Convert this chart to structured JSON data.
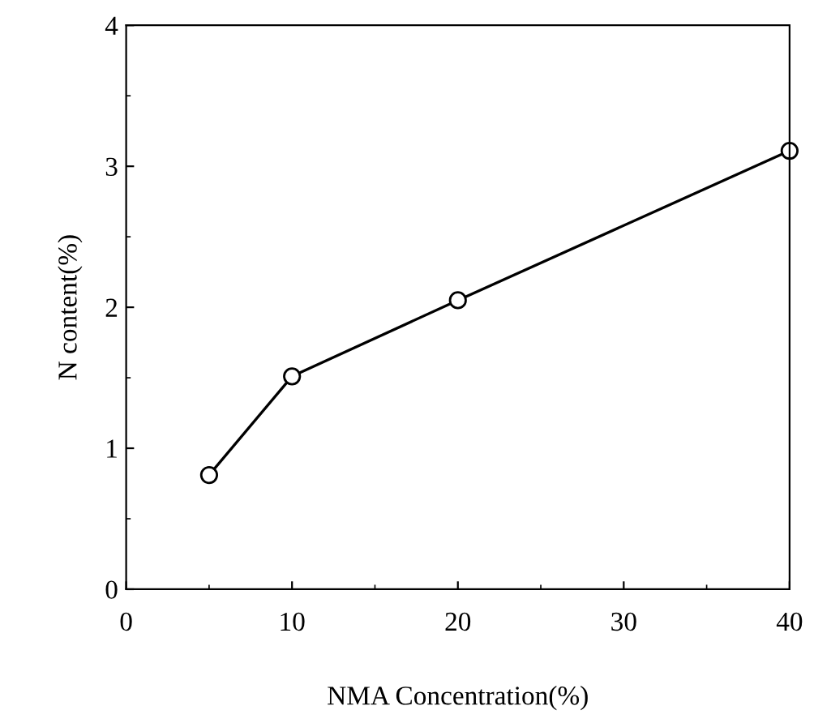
{
  "chart_data": {
    "type": "line",
    "xlabel": "NMA Concentration(%)",
    "ylabel": "N content(%)",
    "x": [
      5,
      10,
      20,
      40
    ],
    "series": [
      {
        "color": "#000000",
        "values": [
          0.81,
          1.51,
          2.05,
          3.11
        ]
      }
    ],
    "xlim": [
      0,
      40
    ],
    "xticks": [
      0,
      10,
      20,
      30,
      40
    ],
    "ylim": [
      0,
      4
    ],
    "yticks": [
      0,
      1,
      2,
      3,
      4
    ],
    "marker": "circle",
    "line_style": "solid",
    "grid": false,
    "legend": false
  }
}
